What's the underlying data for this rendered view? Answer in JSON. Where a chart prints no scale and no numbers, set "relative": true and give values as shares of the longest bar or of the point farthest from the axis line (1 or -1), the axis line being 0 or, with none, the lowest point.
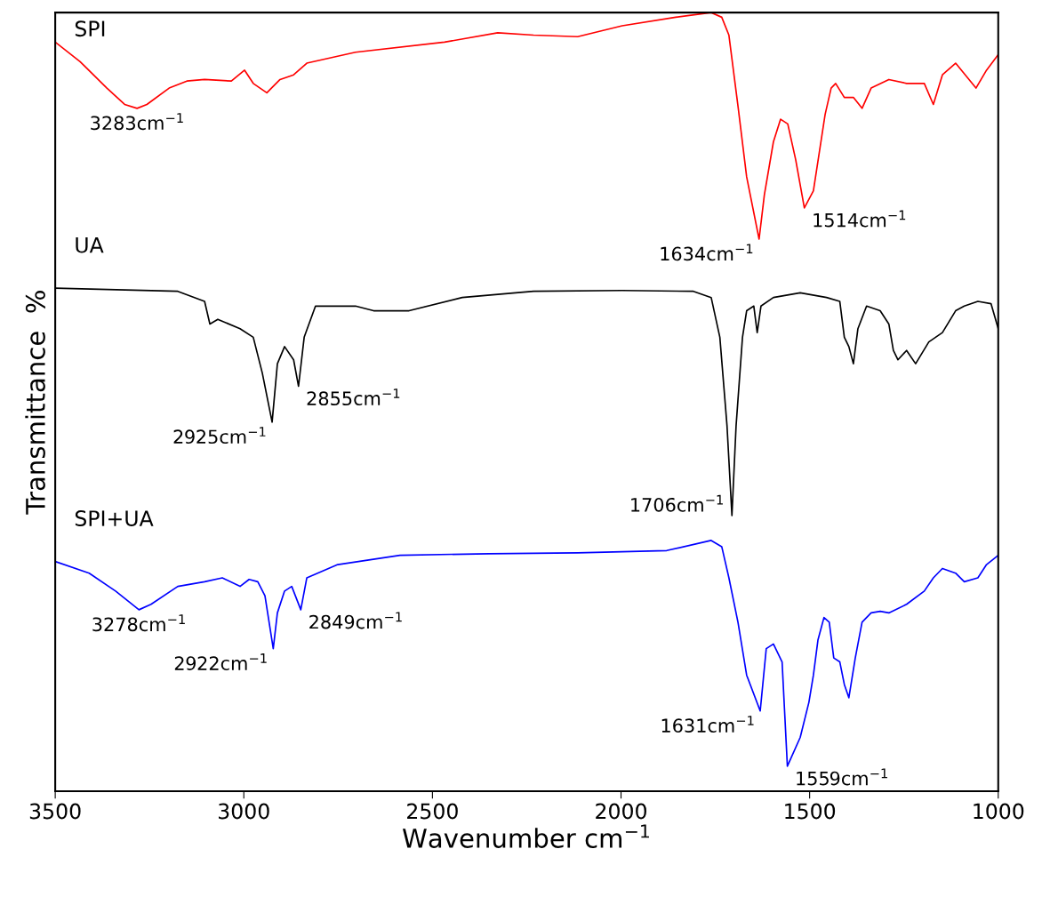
{
  "chart_data": {
    "type": "line",
    "relative": true,
    "xlabel": "Wavenumber cm$^{−1}$",
    "ylabel": "Transmittance  %",
    "xlim": [
      3500,
      1000
    ],
    "xticks": [
      3500,
      3000,
      2500,
      2000,
      1500,
      1000
    ],
    "grid": false,
    "legend": false,
    "marker": "none",
    "line_style": "solid",
    "series": [
      {
        "name": "SPI",
        "color": "#ff0000",
        "x": [
          3500,
          3434,
          3363,
          3316,
          3283,
          3257,
          3198,
          3151,
          3104,
          3033,
          2998,
          2975,
          2939,
          2904,
          2868,
          2833,
          2704,
          2468,
          2327,
          2232,
          2115,
          1997,
          1855,
          1761,
          1733,
          1714,
          1690,
          1667,
          1634,
          1620,
          1596,
          1577,
          1558,
          1537,
          1514,
          1490,
          1459,
          1443,
          1431,
          1408,
          1384,
          1361,
          1337,
          1290,
          1243,
          1196,
          1172,
          1148,
          1113,
          1059,
          1031,
          1000
        ],
        "values": [
          0.962,
          0.937,
          0.903,
          0.882,
          0.877,
          0.882,
          0.903,
          0.912,
          0.914,
          0.912,
          0.926,
          0.909,
          0.897,
          0.914,
          0.92,
          0.935,
          0.949,
          0.962,
          0.974,
          0.971,
          0.969,
          0.983,
          0.994,
          1.0,
          0.994,
          0.971,
          0.88,
          0.789,
          0.709,
          0.766,
          0.834,
          0.863,
          0.857,
          0.811,
          0.749,
          0.771,
          0.869,
          0.903,
          0.909,
          0.891,
          0.891,
          0.877,
          0.903,
          0.914,
          0.909,
          0.909,
          0.882,
          0.92,
          0.935,
          0.903,
          0.926,
          0.946
        ]
      },
      {
        "name": "UA",
        "color": "#000000",
        "x": [
          3500,
          3175,
          3104,
          3090,
          3069,
          3010,
          2975,
          2951,
          2925,
          2911,
          2892,
          2868,
          2855,
          2840,
          2810,
          2704,
          2656,
          2562,
          2421,
          2232,
          1997,
          1808,
          1761,
          1738,
          1719,
          1706,
          1695,
          1678,
          1667,
          1648,
          1639,
          1629,
          1596,
          1525,
          1455,
          1420,
          1408,
          1396,
          1384,
          1372,
          1349,
          1313,
          1290,
          1278,
          1266,
          1243,
          1219,
          1184,
          1148,
          1113,
          1090,
          1054,
          1019,
          1000
        ],
        "values": [
          0.646,
          0.642,
          0.629,
          0.6,
          0.606,
          0.594,
          0.583,
          0.537,
          0.474,
          0.549,
          0.571,
          0.554,
          0.52,
          0.583,
          0.623,
          0.623,
          0.617,
          0.617,
          0.634,
          0.642,
          0.643,
          0.642,
          0.634,
          0.583,
          0.469,
          0.354,
          0.469,
          0.583,
          0.617,
          0.623,
          0.589,
          0.623,
          0.634,
          0.64,
          0.634,
          0.629,
          0.583,
          0.571,
          0.549,
          0.594,
          0.623,
          0.617,
          0.6,
          0.566,
          0.554,
          0.566,
          0.549,
          0.577,
          0.589,
          0.617,
          0.623,
          0.629,
          0.626,
          0.594
        ]
      },
      {
        "name": "SPI+UA",
        "color": "#0000ff",
        "x": [
          3500,
          3410,
          3340,
          3278,
          3246,
          3175,
          3104,
          3057,
          3010,
          2986,
          2963,
          2944,
          2922,
          2911,
          2892,
          2873,
          2849,
          2833,
          2751,
          2586,
          2350,
          2115,
          1879,
          1761,
          1733,
          1714,
          1690,
          1667,
          1631,
          1615,
          1596,
          1573,
          1559,
          1525,
          1502,
          1490,
          1478,
          1462,
          1448,
          1436,
          1420,
          1408,
          1396,
          1379,
          1361,
          1337,
          1313,
          1290,
          1243,
          1196,
          1172,
          1148,
          1113,
          1090,
          1054,
          1031,
          1000
        ],
        "values": [
          0.295,
          0.28,
          0.257,
          0.233,
          0.24,
          0.263,
          0.269,
          0.274,
          0.263,
          0.272,
          0.269,
          0.251,
          0.183,
          0.229,
          0.257,
          0.263,
          0.233,
          0.274,
          0.291,
          0.303,
          0.305,
          0.306,
          0.309,
          0.322,
          0.314,
          0.274,
          0.217,
          0.149,
          0.103,
          0.183,
          0.189,
          0.166,
          0.032,
          0.069,
          0.114,
          0.149,
          0.194,
          0.223,
          0.217,
          0.171,
          0.166,
          0.137,
          0.12,
          0.171,
          0.217,
          0.229,
          0.231,
          0.229,
          0.24,
          0.257,
          0.274,
          0.286,
          0.28,
          0.269,
          0.274,
          0.291,
          0.303
        ]
      }
    ],
    "annotations": [
      {
        "text": "3283cm$^{−1}$",
        "x": 3283,
        "y": 0.877
      },
      {
        "text": "1634cm$^{−1}$",
        "x": 1634,
        "y": 0.709
      },
      {
        "text": "1514cm$^{−1}$",
        "x": 1514,
        "y": 0.749
      },
      {
        "text": "2925cm$^{−1}$",
        "x": 2925,
        "y": 0.474
      },
      {
        "text": "2855cm$^{−1}$",
        "x": 2855,
        "y": 0.52
      },
      {
        "text": "1706cm$^{−1}$",
        "x": 1706,
        "y": 0.354
      },
      {
        "text": "3278cm$^{−1}$",
        "x": 3278,
        "y": 0.233
      },
      {
        "text": "2922cm$^{−1}$",
        "x": 2922,
        "y": 0.183
      },
      {
        "text": "2849cm$^{−1}$",
        "x": 2849,
        "y": 0.233
      },
      {
        "text": "1631cm$^{−1}$",
        "x": 1631,
        "y": 0.103
      },
      {
        "text": "1559cm$^{−1}$",
        "x": 1559,
        "y": 0.032
      }
    ]
  }
}
